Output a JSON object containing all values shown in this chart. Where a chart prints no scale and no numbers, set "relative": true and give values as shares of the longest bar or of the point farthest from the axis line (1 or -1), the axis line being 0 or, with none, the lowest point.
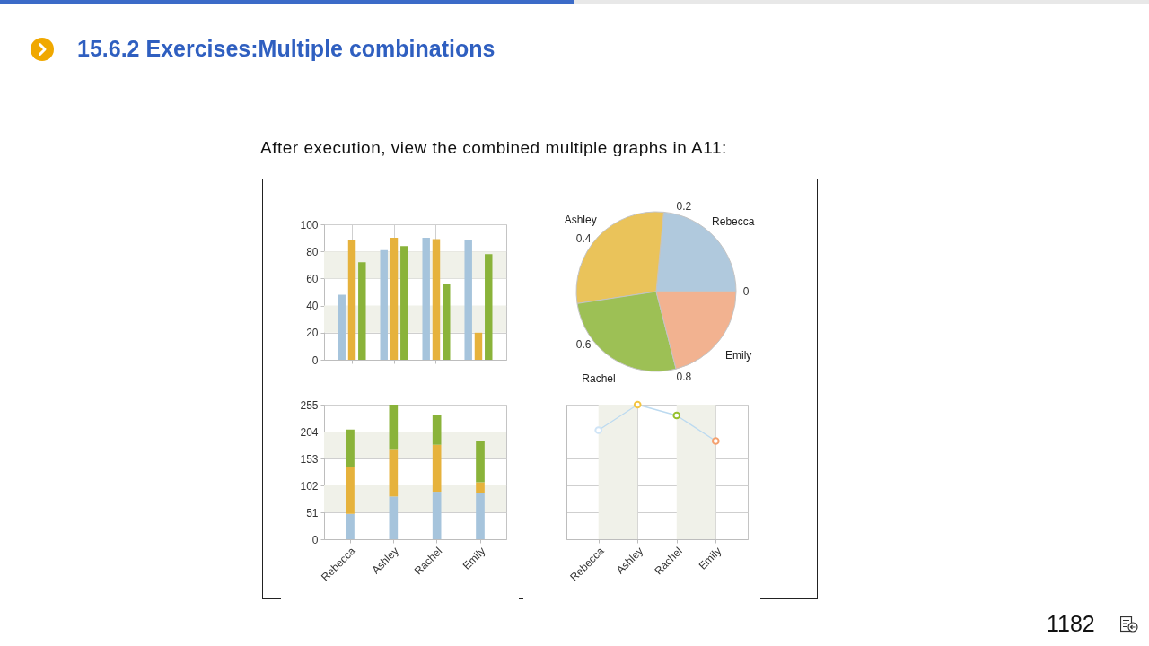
{
  "chart_data": [
    {
      "type": "bar",
      "title": "15.6.2 Exercises:Multiple combinations",
      "subtitle": "After execution, view the combined multiple graphs in A11:",
      "annotations": [
        "1182"
      ],
      "categories": [
        null,
        null,
        null,
        null
      ],
      "series": [
        {
          "color": "#a6c4dc",
          "values": [
            48,
            81,
            90,
            88
          ]
        },
        {
          "color": "#e6b23c",
          "values": [
            88,
            90,
            89,
            20
          ]
        },
        {
          "color": "#8ab33a",
          "values": [
            72,
            84,
            56,
            78
          ]
        }
      ],
      "ylim": [
        0,
        100
      ],
      "yticks": [
        0,
        20,
        40,
        60,
        80,
        100
      ],
      "grid": true,
      "tick_labels": "y",
      "bands": [
        {
          "axis": "y",
          "from": 20,
          "to": 40,
          "color": "#f0f1e9"
        },
        {
          "axis": "y",
          "from": 60,
          "to": 80,
          "color": "#f0f1e9"
        }
      ]
    },
    {
      "type": "pie",
      "categories": [
        "Rebecca",
        "Ashley",
        "Rachel",
        "Emily"
      ],
      "values": [
        23.5,
        28.9,
        26.6,
        21.0
      ],
      "colors": [
        "#b0c9dd",
        "#eac35a",
        "#9dc055",
        "#f2b290"
      ],
      "annotations": [
        "0",
        "0.2",
        "0.4",
        "0.6",
        "0.8"
      ]
    },
    {
      "type": "bar",
      "stacked": true,
      "categories": [
        "Rebecca",
        "Ashley",
        "Rachel",
        "Emily"
      ],
      "series": [
        {
          "color": "#a6c4dc",
          "values": [
            48,
            81,
            90,
            88
          ]
        },
        {
          "color": "#e6b23c",
          "values": [
            88,
            90,
            89,
            20
          ]
        },
        {
          "color": "#8ab33a",
          "values": [
            72,
            84,
            56,
            78
          ]
        }
      ],
      "ylim": [
        0,
        255
      ],
      "yticks": [
        0,
        51,
        102,
        153,
        204,
        255
      ],
      "grid": "y",
      "bands": [
        {
          "axis": "y",
          "from": 51,
          "to": 102,
          "color": "#f0f1e9"
        },
        {
          "axis": "y",
          "from": 153,
          "to": 204,
          "color": "#f0f1e9"
        }
      ]
    },
    {
      "type": "line",
      "relative": true,
      "categories": [
        "Rebecca",
        "Ashley",
        "Rachel",
        "Emily"
      ],
      "series": [
        {
          "color": "#bcdaf0",
          "values": [
            0.81,
            1,
            0.92,
            0.73
          ]
        }
      ],
      "colors": [
        "#cfe4f6",
        "#f4c542",
        "#96c02e",
        "#f4a06e"
      ],
      "marker": "circle",
      "grid": true,
      "tick_labels": "x",
      "bands": [
        {
          "axis": "x",
          "from": "Rebecca",
          "to": "Ashley",
          "color": "#f0f1e9"
        },
        {
          "axis": "x",
          "from": "Rachel",
          "to": "Emily",
          "color": "#f0f1e9"
        }
      ]
    }
  ]
}
